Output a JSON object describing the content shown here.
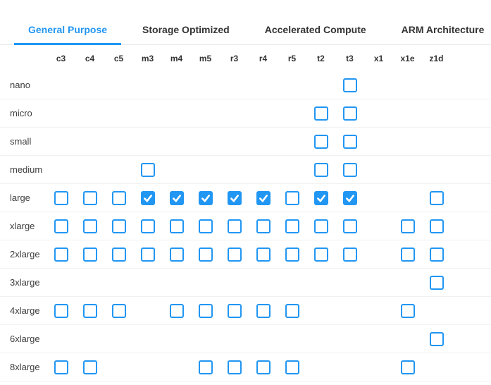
{
  "colors": {
    "accent": "#2196f3",
    "tab_inactive_text": "#333333",
    "row_separator": "#f1f1f1",
    "tabbar_border": "#e4e4e4"
  },
  "tabs": [
    {
      "id": "general-purpose",
      "label": "General Purpose",
      "active": true
    },
    {
      "id": "storage-optimized",
      "label": "Storage Optimized",
      "active": false
    },
    {
      "id": "accelerated-compute",
      "label": "Accelerated Compute",
      "active": false
    },
    {
      "id": "arm-architecture",
      "label": "ARM Architecture",
      "active": false
    }
  ],
  "matrix": {
    "columns": [
      "c3",
      "c4",
      "c5",
      "m3",
      "m4",
      "m5",
      "r3",
      "r4",
      "r5",
      "t2",
      "t3",
      "x1",
      "x1e",
      "z1d"
    ],
    "rows": [
      {
        "label": "nano",
        "cells": {
          "t3": false
        }
      },
      {
        "label": "micro",
        "cells": {
          "t2": false,
          "t3": false
        }
      },
      {
        "label": "small",
        "cells": {
          "t2": false,
          "t3": false
        }
      },
      {
        "label": "medium",
        "cells": {
          "m3": false,
          "t2": false,
          "t3": false
        }
      },
      {
        "label": "large",
        "cells": {
          "c3": false,
          "c4": false,
          "c5": false,
          "m3": true,
          "m4": true,
          "m5": true,
          "r3": true,
          "r4": true,
          "r5": false,
          "t2": true,
          "t3": true,
          "z1d": false
        }
      },
      {
        "label": "xlarge",
        "cells": {
          "c3": false,
          "c4": false,
          "c5": false,
          "m3": false,
          "m4": false,
          "m5": false,
          "r3": false,
          "r4": false,
          "r5": false,
          "t2": false,
          "t3": false,
          "x1e": false,
          "z1d": false
        }
      },
      {
        "label": "2xlarge",
        "cells": {
          "c3": false,
          "c4": false,
          "c5": false,
          "m3": false,
          "m4": false,
          "m5": false,
          "r3": false,
          "r4": false,
          "r5": false,
          "t2": false,
          "t3": false,
          "x1e": false,
          "z1d": false
        }
      },
      {
        "label": "3xlarge",
        "cells": {
          "z1d": false
        }
      },
      {
        "label": "4xlarge",
        "cells": {
          "c3": false,
          "c4": false,
          "c5": false,
          "m4": false,
          "m5": false,
          "r3": false,
          "r4": false,
          "r5": false,
          "x1e": false
        }
      },
      {
        "label": "6xlarge",
        "cells": {
          "z1d": false
        }
      },
      {
        "label": "8xlarge",
        "cells": {
          "c3": false,
          "c4": false,
          "m5": false,
          "r3": false,
          "r4": false,
          "r5": false,
          "x1e": false
        }
      }
    ]
  }
}
